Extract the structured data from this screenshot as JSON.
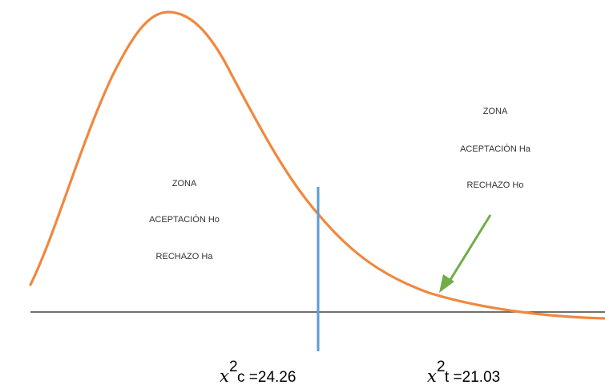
{
  "left_zone": {
    "line1": "ZONA",
    "line2": "ACEPTACIÓN Ho",
    "line3": "RECHAZO Ha"
  },
  "right_zone": {
    "line1": "ZONA",
    "line2": "ACEPTACIÓN Ha",
    "line3": "RECHAZO Ho"
  },
  "chi_calc": {
    "symbol": "x",
    "exponent": "2",
    "rest": "c =24.26"
  },
  "chi_table": {
    "symbol": "x",
    "exponent": "2",
    "rest": "t =21.03"
  },
  "colors": {
    "curve": "#f0883e",
    "critical_line": "#5b9bd5",
    "arrow": "#70ad47",
    "baseline": "#404040"
  }
}
